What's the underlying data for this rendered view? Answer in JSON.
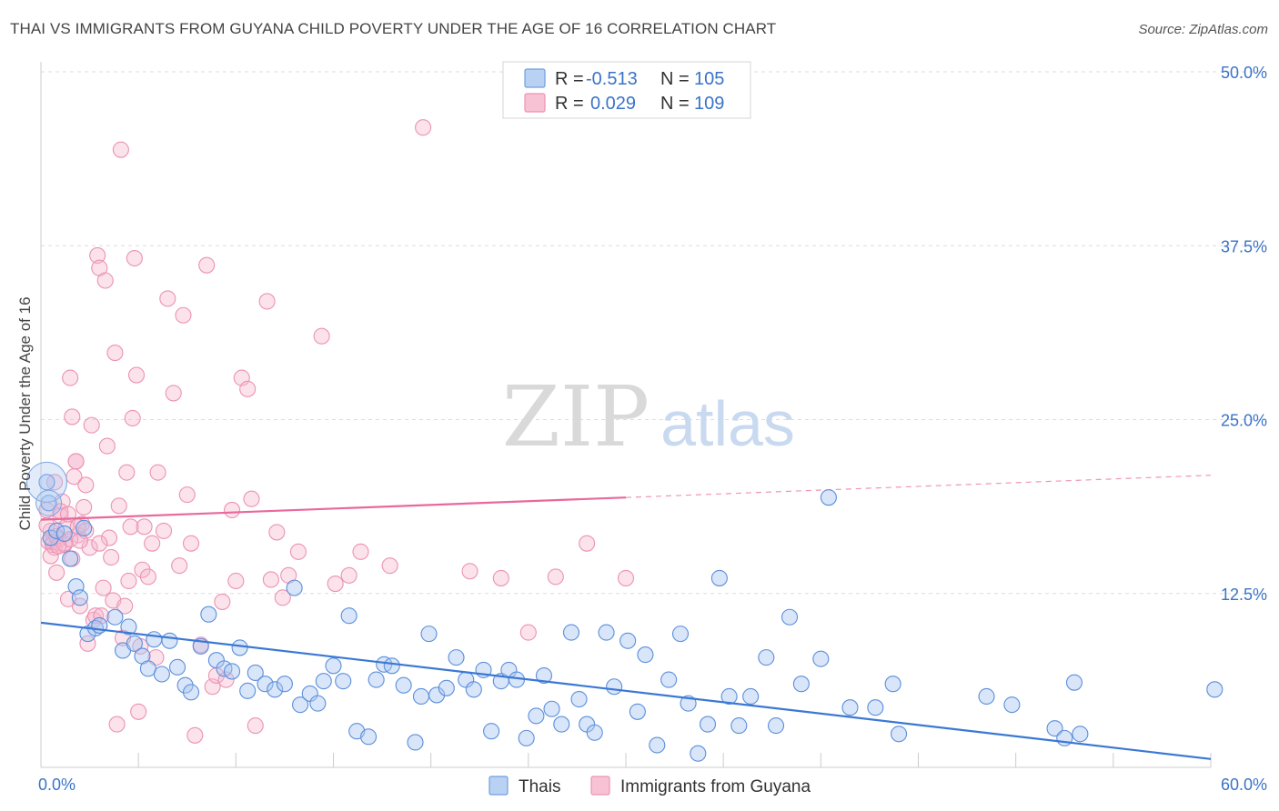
{
  "title": "THAI VS IMMIGRANTS FROM GUYANA CHILD POVERTY UNDER THE AGE OF 16 CORRELATION CHART",
  "source": "Source: ZipAtlas.com",
  "watermark": {
    "zip": "ZIP",
    "atlas": "atlas"
  },
  "colors": {
    "blue": "#3b78d4",
    "pink": "#e8699a",
    "blue_fill": "#b9d1f2",
    "pink_fill": "#f7c3d4",
    "tick_label": "#3a73c8"
  },
  "chart_data": {
    "type": "scatter",
    "xlabel": "",
    "ylabel": "Child Poverty Under the Age of 16",
    "xlim": [
      0,
      60
    ],
    "ylim": [
      0,
      50
    ],
    "x_tick_labels": [
      "0.0%",
      "60.0%"
    ],
    "y_ticks": [
      12.5,
      25.0,
      37.5,
      50.0
    ],
    "y_tick_labels": [
      "12.5%",
      "25.0%",
      "37.5%",
      "50.0%"
    ],
    "grid": true,
    "legend_position": "top-center",
    "stats_legend": [
      {
        "series": "Thais",
        "r_label": "R =",
        "r_value": "-0.513",
        "n_label": "N =",
        "n_value": "105"
      },
      {
        "series": "Immigrants from Guyana",
        "r_label": "R =",
        "r_value": "0.029",
        "n_label": "N =",
        "n_value": "109"
      }
    ],
    "bottom_legend": [
      "Thais",
      "Immigrants from Guyana"
    ],
    "series": [
      {
        "name": "Thais",
        "color": "#3b78d4",
        "trend": {
          "x1": 0,
          "y1": 10.4,
          "x2": 60,
          "y2": 0.6,
          "solid_until": 60
        },
        "points": [
          [
            0.3,
            20.5
          ],
          [
            0.4,
            19.0
          ],
          [
            0.5,
            16.5
          ],
          [
            0.8,
            17.0
          ],
          [
            1.2,
            16.8
          ],
          [
            1.5,
            15.0
          ],
          [
            2.2,
            17.2
          ],
          [
            1.8,
            13.0
          ],
          [
            2.0,
            12.2
          ],
          [
            2.4,
            9.6
          ],
          [
            2.8,
            10.0
          ],
          [
            3.0,
            10.2
          ],
          [
            3.8,
            10.8
          ],
          [
            4.2,
            8.4
          ],
          [
            4.5,
            10.1
          ],
          [
            4.8,
            8.9
          ],
          [
            5.2,
            8.0
          ],
          [
            5.5,
            7.1
          ],
          [
            5.8,
            9.2
          ],
          [
            6.2,
            6.7
          ],
          [
            6.6,
            9.1
          ],
          [
            7.0,
            7.2
          ],
          [
            7.4,
            5.9
          ],
          [
            7.7,
            5.4
          ],
          [
            8.2,
            8.7
          ],
          [
            8.6,
            11.0
          ],
          [
            9.0,
            7.7
          ],
          [
            9.4,
            7.1
          ],
          [
            9.8,
            6.9
          ],
          [
            10.2,
            8.6
          ],
          [
            10.6,
            5.5
          ],
          [
            11.0,
            6.8
          ],
          [
            11.5,
            6.0
          ],
          [
            12.0,
            5.6
          ],
          [
            12.5,
            6.0
          ],
          [
            13.0,
            12.9
          ],
          [
            13.3,
            4.5
          ],
          [
            13.8,
            5.3
          ],
          [
            14.2,
            4.6
          ],
          [
            14.5,
            6.2
          ],
          [
            15.0,
            7.3
          ],
          [
            15.5,
            6.2
          ],
          [
            15.8,
            10.9
          ],
          [
            16.2,
            2.6
          ],
          [
            16.8,
            2.2
          ],
          [
            17.2,
            6.3
          ],
          [
            17.6,
            7.4
          ],
          [
            18.0,
            7.3
          ],
          [
            18.6,
            5.9
          ],
          [
            19.2,
            1.8
          ],
          [
            19.5,
            5.1
          ],
          [
            19.9,
            9.6
          ],
          [
            20.3,
            5.2
          ],
          [
            20.8,
            5.7
          ],
          [
            21.3,
            7.9
          ],
          [
            21.8,
            6.3
          ],
          [
            22.2,
            5.6
          ],
          [
            22.7,
            7.0
          ],
          [
            23.1,
            2.6
          ],
          [
            23.6,
            6.2
          ],
          [
            24.0,
            7.0
          ],
          [
            24.4,
            6.3
          ],
          [
            24.9,
            2.1
          ],
          [
            25.4,
            3.7
          ],
          [
            25.8,
            6.6
          ],
          [
            26.2,
            4.2
          ],
          [
            26.7,
            3.1
          ],
          [
            27.2,
            9.7
          ],
          [
            27.6,
            4.9
          ],
          [
            28.0,
            3.1
          ],
          [
            28.4,
            2.5
          ],
          [
            29.0,
            9.7
          ],
          [
            29.4,
            5.8
          ],
          [
            30.1,
            9.1
          ],
          [
            30.6,
            4.0
          ],
          [
            31.0,
            8.1
          ],
          [
            31.6,
            1.6
          ],
          [
            32.2,
            6.3
          ],
          [
            32.8,
            9.6
          ],
          [
            33.2,
            4.6
          ],
          [
            33.7,
            1.0
          ],
          [
            34.2,
            3.1
          ],
          [
            34.8,
            13.6
          ],
          [
            35.3,
            5.1
          ],
          [
            35.8,
            3.0
          ],
          [
            36.4,
            5.1
          ],
          [
            37.2,
            7.9
          ],
          [
            37.7,
            3.0
          ],
          [
            38.4,
            10.8
          ],
          [
            39.0,
            6.0
          ],
          [
            40.0,
            7.8
          ],
          [
            40.4,
            19.4
          ],
          [
            41.5,
            4.3
          ],
          [
            42.8,
            4.3
          ],
          [
            43.7,
            6.0
          ],
          [
            44.0,
            2.4
          ],
          [
            48.5,
            5.1
          ],
          [
            49.8,
            4.5
          ],
          [
            52.0,
            2.8
          ],
          [
            52.5,
            2.1
          ],
          [
            53.0,
            6.1
          ],
          [
            53.3,
            2.4
          ],
          [
            60.2,
            5.6
          ]
        ]
      },
      {
        "name": "Immigrants from Guyana",
        "color": "#e8699a",
        "trend": {
          "x1": 0,
          "y1": 17.8,
          "x2": 60,
          "y2": 21.0,
          "solid_until": 30
        },
        "points": [
          [
            0.3,
            18.5
          ],
          [
            0.5,
            17.0
          ],
          [
            0.6,
            16.2
          ],
          [
            0.7,
            15.8
          ],
          [
            0.8,
            14.0
          ],
          [
            0.9,
            16.4
          ],
          [
            1.0,
            18.1
          ],
          [
            1.1,
            19.1
          ],
          [
            1.2,
            16.0
          ],
          [
            1.3,
            17.3
          ],
          [
            1.4,
            12.1
          ],
          [
            1.5,
            28.0
          ],
          [
            1.6,
            25.2
          ],
          [
            1.7,
            20.9
          ],
          [
            1.8,
            22.0
          ],
          [
            1.9,
            16.7
          ],
          [
            2.0,
            11.6
          ],
          [
            2.1,
            17.5
          ],
          [
            2.2,
            18.7
          ],
          [
            2.3,
            20.3
          ],
          [
            2.4,
            8.9
          ],
          [
            2.5,
            15.8
          ],
          [
            2.6,
            24.6
          ],
          [
            2.7,
            10.6
          ],
          [
            2.8,
            10.9
          ],
          [
            2.9,
            36.8
          ],
          [
            3.0,
            35.9
          ],
          [
            3.1,
            10.9
          ],
          [
            3.2,
            12.9
          ],
          [
            3.3,
            35.0
          ],
          [
            3.4,
            23.1
          ],
          [
            3.5,
            16.5
          ],
          [
            3.6,
            15.1
          ],
          [
            3.7,
            12.0
          ],
          [
            3.8,
            29.8
          ],
          [
            3.9,
            3.1
          ],
          [
            4.0,
            18.8
          ],
          [
            4.1,
            44.4
          ],
          [
            4.2,
            9.3
          ],
          [
            4.3,
            11.6
          ],
          [
            4.4,
            21.2
          ],
          [
            4.5,
            13.4
          ],
          [
            4.6,
            17.3
          ],
          [
            4.7,
            25.1
          ],
          [
            4.8,
            36.6
          ],
          [
            4.9,
            28.2
          ],
          [
            5.0,
            4.0
          ],
          [
            5.1,
            8.7
          ],
          [
            5.2,
            14.2
          ],
          [
            5.3,
            17.3
          ],
          [
            5.5,
            13.7
          ],
          [
            5.7,
            16.1
          ],
          [
            5.9,
            7.9
          ],
          [
            6.0,
            21.2
          ],
          [
            6.3,
            17.0
          ],
          [
            6.5,
            33.7
          ],
          [
            6.8,
            26.9
          ],
          [
            7.1,
            14.5
          ],
          [
            7.3,
            32.5
          ],
          [
            7.5,
            19.6
          ],
          [
            7.7,
            16.1
          ],
          [
            7.9,
            2.3
          ],
          [
            8.2,
            8.8
          ],
          [
            8.5,
            36.1
          ],
          [
            8.8,
            5.8
          ],
          [
            9.0,
            6.6
          ],
          [
            9.3,
            11.9
          ],
          [
            9.5,
            6.3
          ],
          [
            9.8,
            18.5
          ],
          [
            10.0,
            13.4
          ],
          [
            10.3,
            28.0
          ],
          [
            10.6,
            27.2
          ],
          [
            10.8,
            19.3
          ],
          [
            11.0,
            3.0
          ],
          [
            11.6,
            33.5
          ],
          [
            11.8,
            13.5
          ],
          [
            12.1,
            16.9
          ],
          [
            12.4,
            12.2
          ],
          [
            12.7,
            13.8
          ],
          [
            13.2,
            15.5
          ],
          [
            14.4,
            31.0
          ],
          [
            15.1,
            13.2
          ],
          [
            15.8,
            13.8
          ],
          [
            16.4,
            15.5
          ],
          [
            17.9,
            14.5
          ],
          [
            19.6,
            46.0
          ],
          [
            22.0,
            14.1
          ],
          [
            23.6,
            13.6
          ],
          [
            25.0,
            9.7
          ],
          [
            26.4,
            13.7
          ],
          [
            28.0,
            16.1
          ],
          [
            30.0,
            13.6
          ],
          [
            0.4,
            16.2
          ],
          [
            0.6,
            16.0
          ],
          [
            0.8,
            16.6
          ],
          [
            1.2,
            16.1
          ],
          [
            1.5,
            16.4
          ],
          [
            1.9,
            17.3
          ],
          [
            2.3,
            17.0
          ],
          [
            0.7,
            20.5
          ],
          [
            1.0,
            18.4
          ],
          [
            1.4,
            18.2
          ],
          [
            1.8,
            22.0
          ],
          [
            0.5,
            15.2
          ],
          [
            0.9,
            15.9
          ],
          [
            1.6,
            15.0
          ],
          [
            2.0,
            16.3
          ],
          [
            3.0,
            16.1
          ],
          [
            0.3,
            17.4
          ]
        ]
      }
    ]
  }
}
